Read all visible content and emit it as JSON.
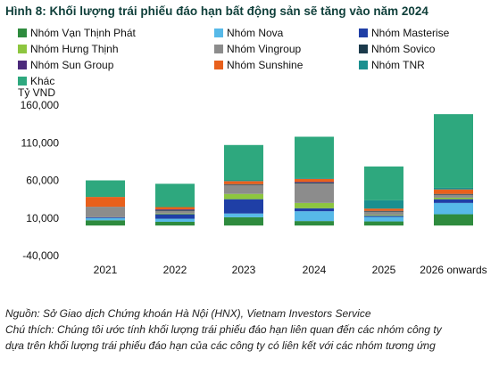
{
  "title": "Hình 8: Khối lượng trái phiếu đáo hạn bất động sản sẽ tăng vào năm 2024",
  "source_note": "Nguồn: Sở Giao dịch Chứng khoán Hà Nội (HNX), Vietnam Investors Service",
  "footnote_line1": "Chú thích: Chúng tôi ước tính khối lượng trái phiếu đáo hạn liên quan đến các nhóm công ty",
  "footnote_line2": "dựa trên khối lượng trái phiếu đáo hạn của các công ty có liên kết với các nhóm tương ứng",
  "chart_data": {
    "type": "bar",
    "stacked": true,
    "ylabel": "Tỷ VND",
    "ylim": [
      -40000,
      160000
    ],
    "yticks": [
      -40000,
      10000,
      60000,
      110000,
      160000
    ],
    "ytick_labels": [
      "-40,000",
      "10,000",
      "60,000",
      "110,000",
      "160,000"
    ],
    "grid": false,
    "legend_position": "top",
    "categories": [
      "2021",
      "2022",
      "2023",
      "2024",
      "2025",
      "2026 onwards"
    ],
    "series": [
      {
        "name": "Nhóm Vạn Thịnh Phát",
        "color": "#2e8b3e",
        "values": [
          7000,
          5000,
          11000,
          6000,
          5500,
          15000
        ]
      },
      {
        "name": "Nhóm Nova",
        "color": "#57b9e8",
        "values": [
          3000,
          4000,
          5000,
          13000,
          6000,
          15000
        ]
      },
      {
        "name": "Nhóm Masterise",
        "color": "#1f3fa6",
        "values": [
          1000,
          6000,
          19000,
          4000,
          1500,
          5000
        ]
      },
      {
        "name": "Nhóm Hưng Thịnh",
        "color": "#8dc63f",
        "values": [
          0,
          1000,
          7000,
          7000,
          1000,
          2000
        ]
      },
      {
        "name": "Nhóm Vingroup",
        "color": "#8c8c8c",
        "values": [
          14000,
          3500,
          12000,
          26000,
          4500,
          4000
        ]
      },
      {
        "name": "Nhóm Sovico",
        "color": "#1b3a4b",
        "values": [
          0,
          1000,
          1000,
          1000,
          1000,
          1000
        ]
      },
      {
        "name": "Nhóm Sun Group",
        "color": "#4b2a7b",
        "values": [
          0,
          1000,
          0,
          1000,
          0,
          0
        ]
      },
      {
        "name": "Nhóm Sunshine",
        "color": "#e8601c",
        "values": [
          13000,
          3000,
          4000,
          4000,
          3000,
          6000
        ]
      },
      {
        "name": "Nhóm TNR",
        "color": "#1a8f8f",
        "values": [
          0,
          0,
          1000,
          1000,
          11000,
          2000
        ]
      },
      {
        "name": "Khác",
        "color": "#2ea87e",
        "values": [
          22000,
          31000,
          47000,
          55000,
          45000,
          98000
        ]
      }
    ]
  }
}
